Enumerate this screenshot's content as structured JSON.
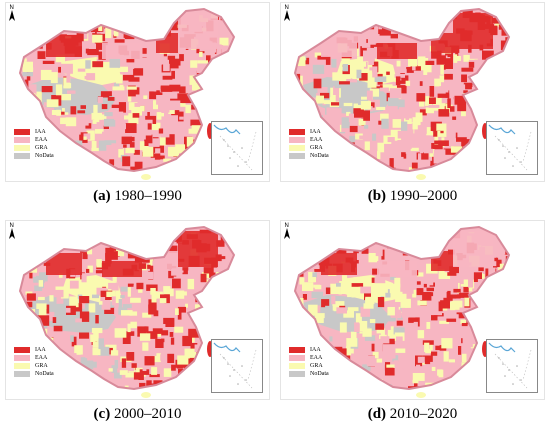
{
  "legend": [
    {
      "label": "IAA",
      "color": "#e02b2b"
    },
    {
      "label": "EAA",
      "color": "#f7b6c2"
    },
    {
      "label": "GRA",
      "color": "#fafab0"
    },
    {
      "label": "NoData",
      "color": "#c8c8c8"
    }
  ],
  "north_label": "N",
  "panels": [
    {
      "letter": "(a)",
      "period": " 1980–1990"
    },
    {
      "letter": "(b)",
      "period": " 1990–2000"
    },
    {
      "letter": "(c)",
      "period": " 2000–2010"
    },
    {
      "letter": "(d)",
      "period": " 2010–2020"
    }
  ],
  "colors": {
    "iaa": "#e02b2b",
    "eaa": "#f7b6c2",
    "gra": "#fafab0",
    "nodata": "#c8c8c8",
    "border": "#d88a9a"
  }
}
